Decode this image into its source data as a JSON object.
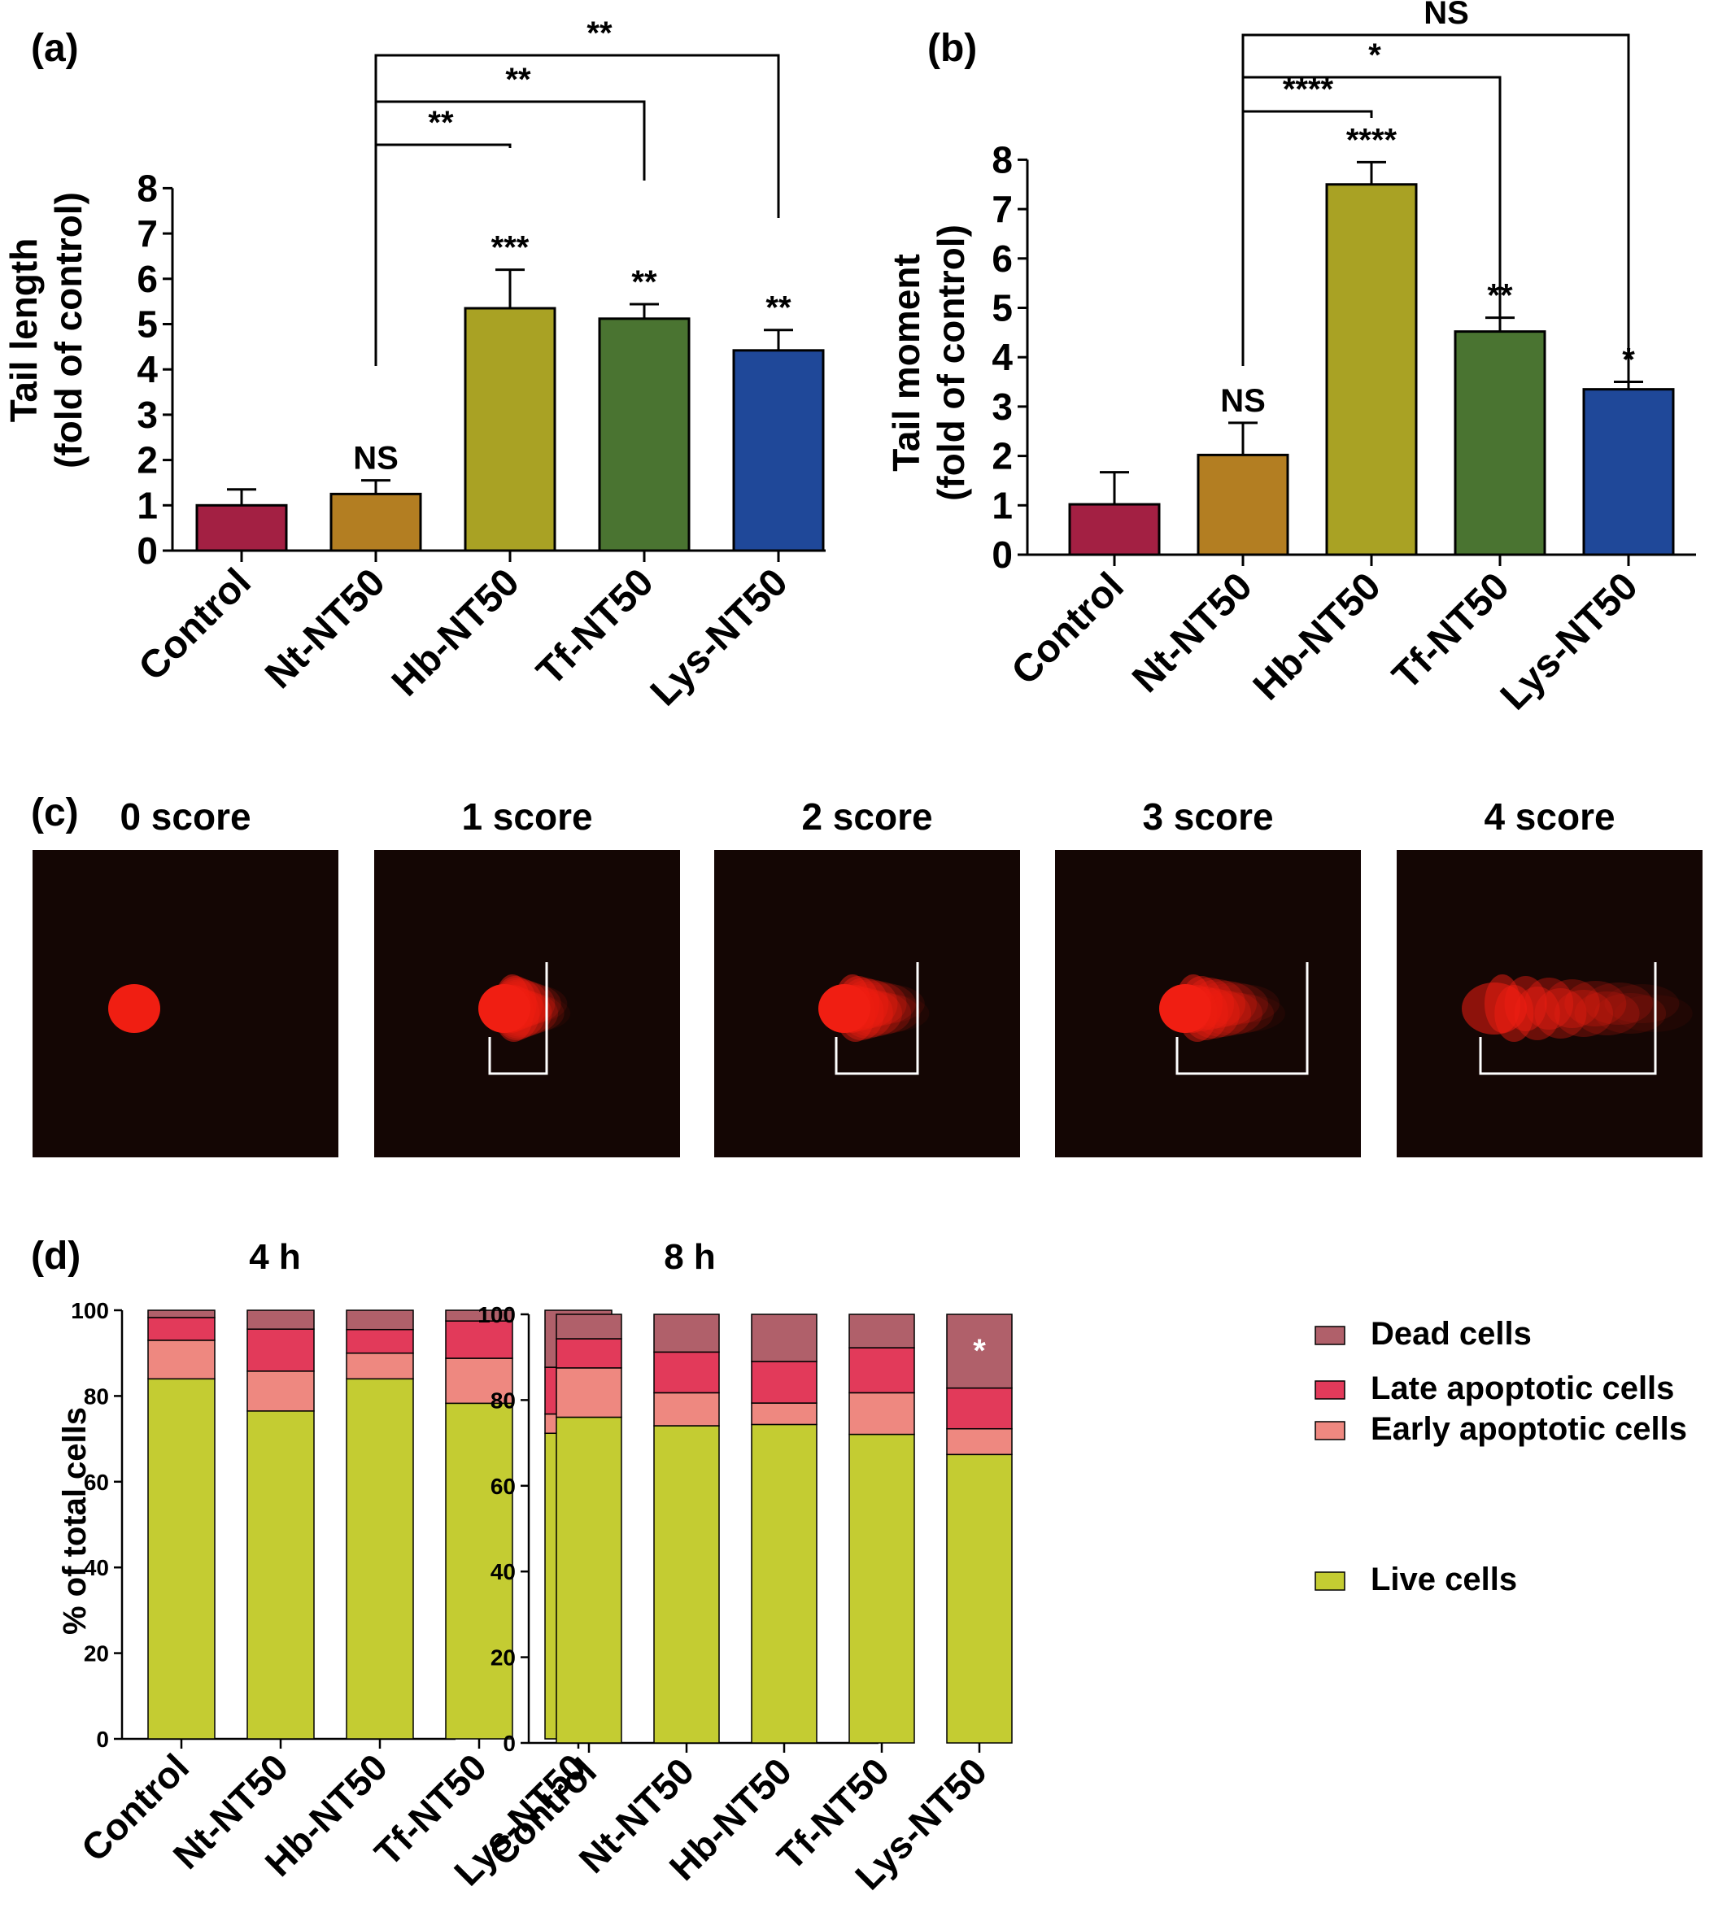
{
  "colors": {
    "control": "#A32043",
    "nt": "#B37E22",
    "hb": "#A9A224",
    "tf": "#4A7431",
    "lys": "#1F4899",
    "live": "#C4CC32",
    "early": "#EE8880",
    "late": "#E23A5A",
    "dead": "#B0606A",
    "axis": "#000000",
    "image_bg": "#140604",
    "cell": "#F01E12",
    "bracket": "#FFFFFF"
  },
  "panel_a": {
    "label": "(a)",
    "ylabel_line1": "Tail length",
    "ylabel_line2": "(fold of control)"
  },
  "panel_b": {
    "label": "(b)",
    "ylabel_line1": "Tail moment",
    "ylabel_line2": "(fold of control)"
  },
  "panel_c": {
    "label": "(c)",
    "images": [
      {
        "title": "0 score",
        "score": 0
      },
      {
        "title": "1 score",
        "score": 1
      },
      {
        "title": "2 score",
        "score": 2
      },
      {
        "title": "3 score",
        "score": 3
      },
      {
        "title": "4 score",
        "score": 4
      }
    ]
  },
  "panel_d": {
    "label": "(d)",
    "ylabel": "% of total cells",
    "legend": [
      {
        "key": "dead",
        "label": "Dead  cells"
      },
      {
        "key": "late",
        "label": "Late apoptotic cells"
      },
      {
        "key": "early",
        "label": "Early apoptotic cells"
      },
      {
        "key": "live",
        "label": "Live cells"
      }
    ]
  },
  "chart_data": [
    {
      "id": "a",
      "type": "bar",
      "categories": [
        "Control",
        "Nt-NT50",
        "Hb-NT50",
        "Tf-NT50",
        "Lys-NT50"
      ],
      "values": [
        1.0,
        1.25,
        5.35,
        5.12,
        4.42
      ],
      "errors": [
        0.35,
        0.3,
        0.85,
        0.32,
        0.45
      ],
      "bar_labels": [
        "",
        "NS",
        "***",
        "**",
        "**"
      ],
      "comparisons": [
        {
          "from": 1,
          "to": 2,
          "label": "**"
        },
        {
          "from": 1,
          "to": 3,
          "label": "**"
        },
        {
          "from": 1,
          "to": 4,
          "label": "**"
        }
      ],
      "ylabel": "Tail length (fold of control)",
      "ylim": [
        0,
        8
      ],
      "yticks": [
        "0",
        "1",
        "2",
        "3",
        "4",
        "5",
        "6",
        "7",
        "8"
      ]
    },
    {
      "id": "b",
      "type": "bar",
      "categories": [
        "Control",
        "Nt-NT50",
        "Hb-NT50",
        "Tf-NT50",
        "Lys-NT50"
      ],
      "values": [
        1.02,
        2.02,
        7.5,
        4.52,
        3.35
      ],
      "errors": [
        0.65,
        0.65,
        0.45,
        0.28,
        0.15
      ],
      "bar_labels": [
        "",
        "NS",
        "****",
        "**",
        "*"
      ],
      "comparisons": [
        {
          "from": 1,
          "to": 2,
          "label": "****"
        },
        {
          "from": 1,
          "to": 3,
          "label": "*"
        },
        {
          "from": 1,
          "to": 4,
          "label": "NS"
        }
      ],
      "ylabel": "Tail moment (fold of control)",
      "ylim": [
        0,
        8
      ],
      "yticks": [
        "0",
        "1",
        "2",
        "3",
        "4",
        "5",
        "6",
        "7",
        "8"
      ]
    },
    {
      "id": "d1",
      "type": "bar",
      "stacked": true,
      "title": "4 h",
      "categories": [
        "Control",
        "Nt-NT50",
        "Hb-NT50",
        "Tf-NT50",
        "Lys-NT50"
      ],
      "series": [
        {
          "name": "Live cells",
          "key": "live",
          "values": [
            84,
            76.5,
            84,
            78.3,
            71.3
          ]
        },
        {
          "name": "Early apoptotic cells",
          "key": "early",
          "values": [
            9,
            9.3,
            6,
            10.5,
            4.5
          ]
        },
        {
          "name": "Late apoptotic cells",
          "key": "late",
          "values": [
            5.3,
            9.8,
            5.5,
            8.7,
            10.9
          ]
        },
        {
          "name": "Dead  cells",
          "key": "dead",
          "values": [
            1.7,
            4.4,
            4.5,
            2.5,
            13.3
          ]
        }
      ],
      "annotations": [
        {
          "index": 4,
          "value": 93,
          "label": "*"
        },
        {
          "index": 4,
          "value": 38,
          "label": "**"
        }
      ],
      "ylabel": "% of total cells",
      "ylim": [
        0,
        100
      ],
      "yticks": [
        "0",
        "20",
        "40",
        "60",
        "80",
        "100"
      ]
    },
    {
      "id": "d2",
      "type": "bar",
      "stacked": true,
      "title": "8 h",
      "categories": [
        "Control",
        "Nt-NT50",
        "Hb-NT50",
        "Tf-NT50",
        "Lys-NT50"
      ],
      "series": [
        {
          "name": "Live cells",
          "key": "live",
          "values": [
            76,
            74,
            74.3,
            72,
            67.3
          ]
        },
        {
          "name": "Early apoptotic cells",
          "key": "early",
          "values": [
            11.5,
            7.7,
            5,
            9.7,
            6
          ]
        },
        {
          "name": "Late apoptotic cells",
          "key": "late",
          "values": [
            6.8,
            9.5,
            9.7,
            10.5,
            9.5
          ]
        },
        {
          "name": "Dead  cells",
          "key": "dead",
          "values": [
            5.7,
            8.8,
            11,
            7.8,
            17.2
          ]
        }
      ],
      "annotations": [
        {
          "index": 4,
          "value": 92,
          "label": "*"
        }
      ],
      "ylim": [
        0,
        100
      ],
      "yticks": [
        "0",
        "20",
        "40",
        "60",
        "80",
        "100"
      ]
    }
  ]
}
